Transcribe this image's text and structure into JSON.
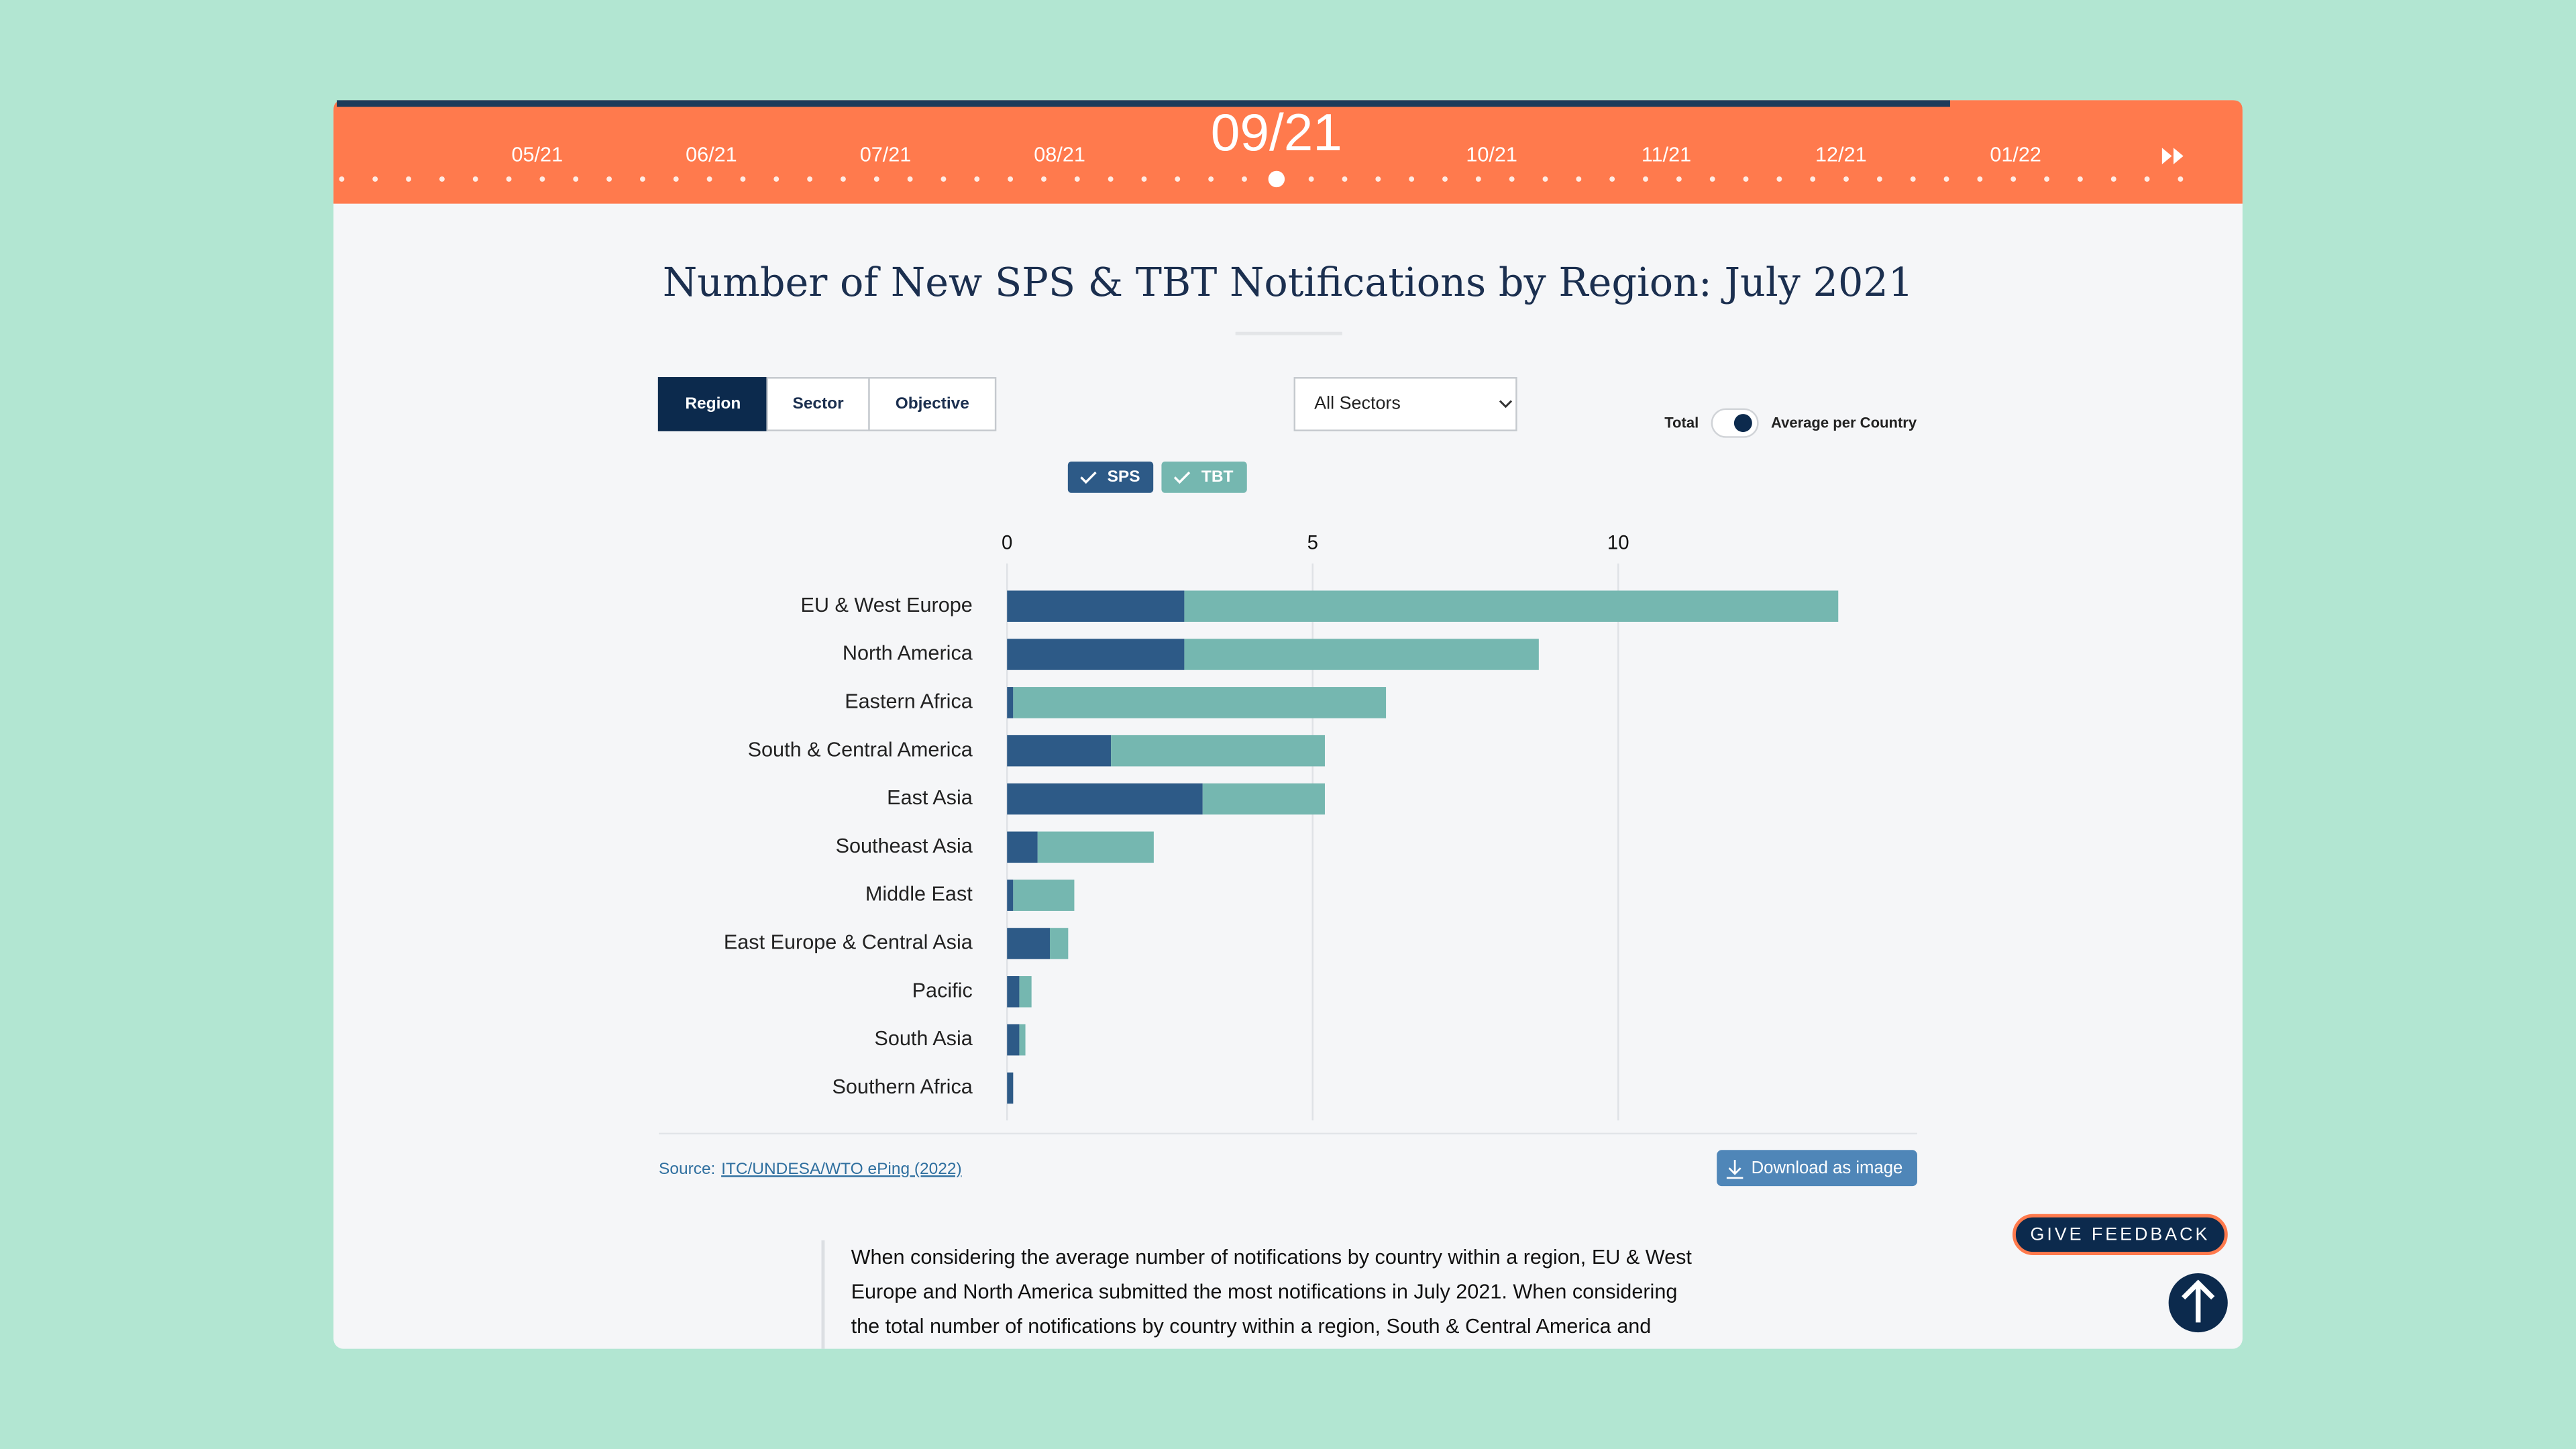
{
  "timeline": {
    "before": [
      "05/21",
      "06/21",
      "07/21",
      "08/21"
    ],
    "current": "09/21",
    "after": [
      "10/21",
      "11/21",
      "12/21",
      "01/22"
    ]
  },
  "tabs": [
    "Region",
    "Sector",
    "Objective"
  ],
  "dropdown": "All Sectors",
  "toggle": [
    "Total",
    "Average per Country"
  ],
  "chart_data": {
    "type": "bar",
    "orientation": "horizontal",
    "stacked": true,
    "title": "Number of New SPS & TBT Notifications by Region: July 2021",
    "categories": [
      "EU & West Europe",
      "North America",
      "Eastern Africa",
      "South & Central America",
      "East Asia",
      "Southeast Asia",
      "Middle East",
      "East Europe & Central Asia",
      "Pacific",
      "South Asia",
      "Southern Africa"
    ],
    "series": [
      {
        "name": "SPS",
        "color": "#2d5a87",
        "values": [
          2.9,
          2.9,
          0.1,
          1.7,
          3.2,
          0.5,
          0.1,
          0.7,
          0.2,
          0.2,
          0.1
        ]
      },
      {
        "name": "TBT",
        "color": "#75b7b0",
        "values": [
          10.7,
          5.8,
          6.1,
          3.5,
          2.0,
          1.9,
          1.0,
          0.3,
          0.2,
          0.1,
          0
        ]
      }
    ],
    "xlim": [
      0,
      14.9
    ],
    "xticks": [
      0,
      5,
      10
    ],
    "grid": true
  },
  "source": {
    "prefix": "Source:",
    "link": "ITC/UNDESA/WTO ePing (2022)"
  },
  "download": "Download as image",
  "feedback": "GIVE FEEDBACK",
  "text": [
    "When considering the average number of notifications by country within a region, EU & West",
    "Europe and North America submitted the most notifications in July 2021. When considering",
    "the total number of notifications by country within a region, South & Central America and"
  ]
}
